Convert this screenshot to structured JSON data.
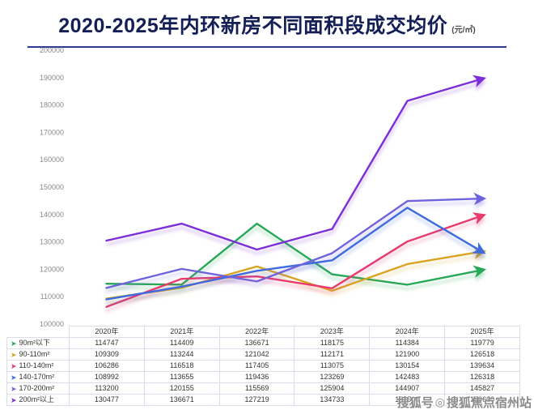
{
  "header": {
    "title": "2020-2025年内环新房不同面积段成交均价",
    "unit": "(元/㎡)"
  },
  "icons": {
    "legend_arrow": "➤",
    "sohu_logo": "◎"
  },
  "watermark": {
    "account_prefix": "搜狐号",
    "account_name": "搜狐焦点宿州站"
  },
  "chart_data": {
    "type": "line",
    "title": "2020-2025年内环新房不同面积段成交均价",
    "xlabel": "",
    "ylabel": "元/㎡",
    "categories": [
      "2020年",
      "2021年",
      "2022年",
      "2023年",
      "2024年",
      "2025年"
    ],
    "series": [
      {
        "name": "90m²以下",
        "color": "#27a857",
        "values": [
          114747,
          114409,
          136671,
          118175,
          114384,
          119779
        ]
      },
      {
        "name": "90-110m²",
        "color": "#d9a422",
        "values": [
          109309,
          113244,
          121042,
          112171,
          121900,
          126518
        ]
      },
      {
        "name": "110-140m²",
        "color": "#e73a6e",
        "values": [
          106286,
          116518,
          117405,
          113075,
          130154,
          139634
        ]
      },
      {
        "name": "140-170m²",
        "color": "#3e6be0",
        "values": [
          108992,
          113655,
          119436,
          123269,
          142483,
          126318
        ]
      },
      {
        "name": "170-200m²",
        "color": "#6f63dd",
        "values": [
          113200,
          120155,
          115569,
          125904,
          144907,
          145827
        ]
      },
      {
        "name": "200m²以上",
        "color": "#7b2fd6",
        "values": [
          130477,
          136671,
          127219,
          134733,
          181500,
          189600
        ]
      }
    ],
    "ylim": [
      100000,
      200000
    ],
    "yticks": [
      100000,
      110000,
      120000,
      130000,
      140000,
      150000,
      160000,
      170000,
      180000,
      190000,
      200000
    ],
    "grid": false,
    "legend_position": "table-left",
    "line_end_marker": "arrow"
  }
}
